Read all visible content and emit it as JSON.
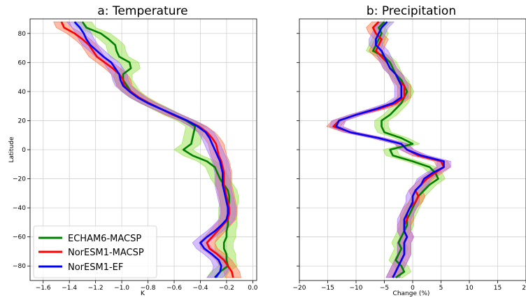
{
  "chart_data": [
    {
      "type": "line",
      "title": "a: Temperature",
      "xlabel": "K",
      "ylabel": "Latitude",
      "xlim": [
        -1.7,
        0.03
      ],
      "ylim": [
        -90,
        90
      ],
      "xticks": [
        -1.6,
        -1.4,
        -1.2,
        -1.0,
        -0.8,
        -0.6,
        -0.4,
        -0.2,
        0.0
      ],
      "xtick_labels": [
        "−1.6",
        "−1.4",
        "−1.2",
        "−1.0",
        "−0.8",
        "−0.6",
        "−0.4",
        "−0.2",
        "0.0"
      ],
      "yticks": [
        -80,
        -60,
        -40,
        -20,
        0,
        20,
        40,
        60,
        80
      ],
      "ytick_labels": [
        "−80",
        "−60",
        "−40",
        "−20",
        "0",
        "20",
        "40",
        "60",
        "80"
      ],
      "grid": true,
      "legend": "lower-left",
      "y": [
        88,
        84,
        80,
        76,
        72,
        68,
        64,
        60,
        56,
        52,
        48,
        44,
        40,
        36,
        32,
        28,
        24,
        20,
        16,
        12,
        8,
        4,
        0,
        -4,
        -8,
        -12,
        -16,
        -20,
        -24,
        -28,
        -32,
        -36,
        -40,
        -44,
        -48,
        -52,
        -56,
        -60,
        -64,
        -68,
        -72,
        -76,
        -80,
        -84,
        -88
      ],
      "series": [
        {
          "name": "ECHAM6-MACSP",
          "color": "#008000",
          "band_color": "#8ee03a",
          "band_width": 0.07,
          "values": [
            -1.3,
            -1.27,
            -1.16,
            -1.1,
            -1.05,
            -1.04,
            -1.02,
            -0.94,
            -0.93,
            -0.99,
            -0.99,
            -0.96,
            -0.93,
            -0.87,
            -0.79,
            -0.7,
            -0.61,
            -0.51,
            -0.44,
            -0.45,
            -0.46,
            -0.47,
            -0.53,
            -0.46,
            -0.35,
            -0.29,
            -0.27,
            -0.25,
            -0.22,
            -0.19,
            -0.18,
            -0.18,
            -0.19,
            -0.19,
            -0.19,
            -0.19,
            -0.2,
            -0.2,
            -0.22,
            -0.22,
            -0.2,
            -0.2,
            -0.19,
            -0.25,
            -0.28
          ]
        },
        {
          "name": "NorESM1-MACSP",
          "color": "#ff0000",
          "band_color": "#ff6a3c",
          "band_width": 0.06,
          "values": [
            -1.46,
            -1.44,
            -1.36,
            -1.3,
            -1.25,
            -1.22,
            -1.19,
            -1.13,
            -1.07,
            -1.02,
            -0.99,
            -0.98,
            -0.93,
            -0.87,
            -0.79,
            -0.7,
            -0.61,
            -0.5,
            -0.41,
            -0.35,
            -0.31,
            -0.28,
            -0.27,
            -0.26,
            -0.24,
            -0.23,
            -0.22,
            -0.22,
            -0.22,
            -0.21,
            -0.2,
            -0.19,
            -0.18,
            -0.18,
            -0.19,
            -0.23,
            -0.27,
            -0.31,
            -0.35,
            -0.33,
            -0.27,
            -0.22,
            -0.19,
            -0.16,
            -0.15
          ]
        },
        {
          "name": "NorESM1-EF",
          "color": "#0000ff",
          "band_color": "#a070ff",
          "band_width": 0.06,
          "values": [
            -1.36,
            -1.32,
            -1.29,
            -1.27,
            -1.24,
            -1.19,
            -1.14,
            -1.08,
            -1.05,
            -1.02,
            -1.01,
            -0.99,
            -0.94,
            -0.88,
            -0.8,
            -0.7,
            -0.6,
            -0.5,
            -0.42,
            -0.36,
            -0.33,
            -0.31,
            -0.29,
            -0.27,
            -0.25,
            -0.24,
            -0.23,
            -0.23,
            -0.23,
            -0.22,
            -0.21,
            -0.2,
            -0.19,
            -0.19,
            -0.2,
            -0.24,
            -0.29,
            -0.35,
            -0.4,
            -0.37,
            -0.31,
            -0.26,
            -0.24,
            -0.25,
            -0.29
          ]
        }
      ]
    },
    {
      "type": "line",
      "title": "b: Precipitation",
      "xlabel": "Change (%)",
      "xlim": [
        -20,
        20
      ],
      "ylim": [
        -90,
        90
      ],
      "xticks": [
        -20,
        -15,
        -10,
        -5,
        0,
        5,
        10,
        15,
        20
      ],
      "xtick_labels": [
        "−20",
        "−15",
        "−10",
        "−5",
        "0",
        "5",
        "10",
        "15",
        "20"
      ],
      "yticks": [
        -80,
        -60,
        -40,
        -20,
        0,
        20,
        40,
        60,
        80
      ],
      "grid": true,
      "y": [
        88,
        84,
        80,
        76,
        72,
        68,
        64,
        60,
        56,
        52,
        48,
        44,
        40,
        36,
        32,
        28,
        24,
        20,
        16,
        12,
        8,
        4,
        0,
        -4,
        -8,
        -12,
        -16,
        -20,
        -24,
        -28,
        -32,
        -36,
        -40,
        -44,
        -48,
        -52,
        -56,
        -60,
        -64,
        -68,
        -72,
        -76,
        -80,
        -84,
        -88
      ],
      "series": [
        {
          "name": "ECHAM6-MACSP",
          "color": "#008000",
          "band_color": "#8ee03a",
          "band_width": 1.2,
          "values": [
            -5,
            -6,
            -5.5,
            -6,
            -6.5,
            -7,
            -5,
            -4,
            -3.5,
            -3,
            -2,
            -1.5,
            -1,
            -1.5,
            -2,
            -3,
            -4,
            -5.5,
            -5.5,
            -5,
            -2,
            0,
            -4,
            -3.5,
            0,
            3,
            4,
            4.5,
            3,
            2,
            1,
            0.5,
            0,
            -0.5,
            -1,
            -1,
            -1.5,
            -2,
            -2.5,
            -2,
            -2.5,
            -3,
            -2,
            -1.5,
            -3
          ]
        },
        {
          "name": "NorESM1-MACSP",
          "color": "#ff0000",
          "band_color": "#ff6a3c",
          "band_width": 1.2,
          "values": [
            -6,
            -7,
            -6.5,
            -5.5,
            -6,
            -6.5,
            -5.5,
            -4.5,
            -4,
            -3,
            -2.5,
            -1.5,
            -1.5,
            -1.5,
            -3,
            -6,
            -10,
            -13,
            -14,
            -11,
            -6,
            -2,
            -1,
            1,
            5,
            5.5,
            4,
            2.5,
            1.5,
            0.5,
            1,
            0.5,
            -0.5,
            -1,
            -1,
            -1.5,
            -1.5,
            -1,
            -1.5,
            -1.5,
            -1.5,
            -2,
            -2.5,
            -3,
            -3.5
          ]
        },
        {
          "name": "NorESM1-EF",
          "color": "#0000ff",
          "band_color": "#a070ff",
          "band_width": 1.2,
          "values": [
            -4.5,
            -5.5,
            -6,
            -6.5,
            -6.5,
            -5.5,
            -5,
            -4.5,
            -4,
            -3,
            -2.5,
            -2,
            -2,
            -2,
            -3.5,
            -6.5,
            -10,
            -13,
            -13.5,
            -11,
            -6,
            -2,
            -1,
            1.5,
            5.5,
            5.5,
            3.5,
            2,
            1.5,
            0.5,
            0,
            0,
            -0.5,
            -1,
            -1.5,
            -1.5,
            -1.5,
            -1,
            -1.5,
            -1.5,
            -1.5,
            -2,
            -2.5,
            -3,
            -3.5
          ]
        }
      ]
    }
  ]
}
